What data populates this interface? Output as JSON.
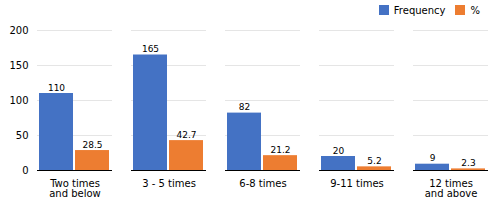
{
  "chart_data": {
    "type": "bar",
    "categories": [
      "Two times\nand below",
      "3 - 5 times",
      "6-8 times",
      "9-11 times",
      "12 times\nand above"
    ],
    "series": [
      {
        "name": "Frequency",
        "color": "#4472C4",
        "values": [
          110,
          165,
          82,
          20,
          9
        ]
      },
      {
        "name": "%",
        "color": "#ED7D31",
        "values": [
          28.5,
          42.7,
          21.2,
          5.2,
          2.3
        ]
      }
    ],
    "ylim": [
      0,
      200
    ],
    "yticks": [
      0,
      50,
      100,
      150,
      200
    ],
    "grid": true,
    "legend": "upper right",
    "data_labels": true
  }
}
